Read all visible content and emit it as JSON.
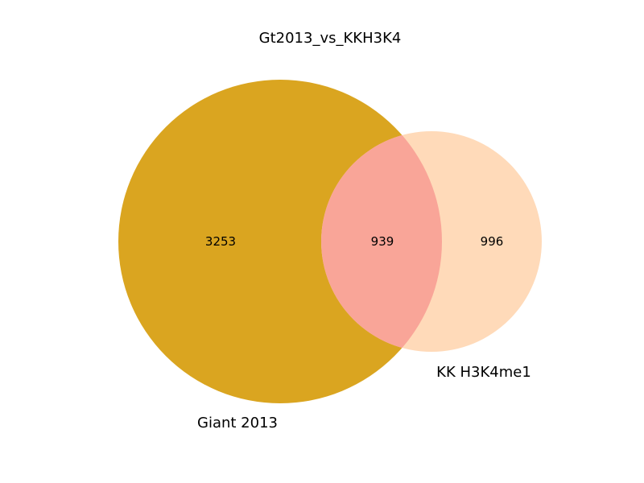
{
  "chart_data": {
    "type": "venn",
    "title": "Gt2013_vs_KKH3K4",
    "sets": [
      {
        "name": "Giant 2013",
        "color": "#DAA520"
      },
      {
        "name": "KK H3K4me1",
        "color": "#FFDAB9"
      }
    ],
    "counts": {
      "only_a": "3253",
      "intersection": "939",
      "only_b": "996"
    },
    "intersection_color": "#F9A598"
  }
}
